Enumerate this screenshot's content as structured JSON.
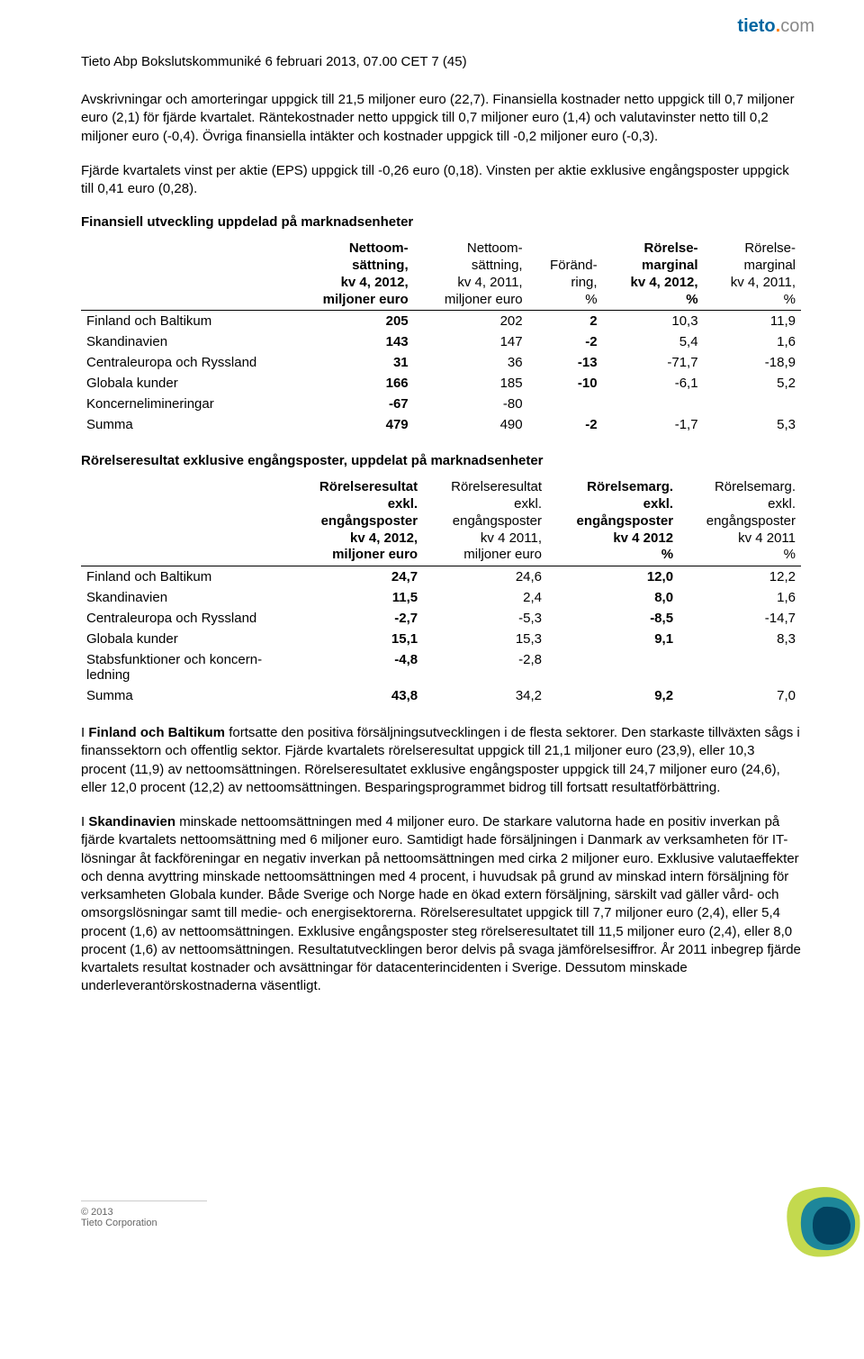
{
  "brand": {
    "name": "tieto",
    "dot": ".",
    "suffix": "com"
  },
  "header_line": "Tieto Abp Bokslutskommuniké 6 februari 2013, 07.00 CET  7 (45)",
  "para1": "Avskrivningar och amorteringar uppgick till 21,5 miljoner euro (22,7). Finansiella kostnader netto uppgick till 0,7 miljoner euro (2,1) för fjärde kvartalet. Räntekostnader netto uppgick till 0,7 miljoner euro (1,4) och valutavinster netto till 0,2 miljoner euro (-0,4). Övriga finansiella intäkter och kostnader uppgick till -0,2 miljoner euro (-0,3).",
  "para2": "Fjärde kvartalets vinst per aktie (EPS) uppgick till -0,26 euro (0,18). Vinsten per aktie exklusive engångsposter uppgick till 0,41 euro (0,28).",
  "section1_heading": "Finansiell utveckling uppdelad på marknadsenheter",
  "table1": {
    "type": "table",
    "columns": [
      {
        "lines": [
          ""
        ],
        "bold_lines": [
          ""
        ]
      },
      {
        "bold_lines": [
          "Nettoom-",
          "sättning,",
          "kv 4, 2012,",
          "miljoner euro"
        ],
        "lines": []
      },
      {
        "bold_lines": [],
        "lines": [
          "Nettoom-",
          "sättning,",
          "kv 4, 2011,",
          "miljoner euro"
        ]
      },
      {
        "bold_lines": [],
        "lines": [
          "Föränd-",
          "ring,",
          "%"
        ]
      },
      {
        "bold_lines": [
          "Rörelse-",
          "marginal",
          "kv 4, 2012,",
          "%"
        ],
        "lines": []
      },
      {
        "bold_lines": [],
        "lines": [
          "Rörelse-",
          "marginal",
          "kv 4, 2011,",
          "%"
        ]
      }
    ],
    "rows": [
      {
        "label": "Finland och Baltikum",
        "cells": [
          "205",
          "202",
          "2",
          "10,3",
          "11,9"
        ]
      },
      {
        "label": "Skandinavien",
        "cells": [
          "143",
          "147",
          "-2",
          "5,4",
          "1,6"
        ]
      },
      {
        "label": "Centraleuropa och Ryssland",
        "cells": [
          "31",
          "36",
          "-13",
          "-71,7",
          "-18,9"
        ]
      },
      {
        "label": "Globala kunder",
        "cells": [
          "166",
          "185",
          "-10",
          "-6,1",
          "5,2"
        ]
      },
      {
        "label": "Koncernelimineringar",
        "cells": [
          "-67",
          "-80",
          "",
          "",
          ""
        ]
      },
      {
        "label": "Summa",
        "cells": [
          "479",
          "490",
          "-2",
          "-1,7",
          "5,3"
        ]
      }
    ],
    "bold_cols": [
      1,
      3
    ]
  },
  "section2_heading": "Rörelseresultat exklusive engångsposter, uppdelat på marknadsenheter",
  "table2": {
    "type": "table",
    "columns": [
      {
        "lines": [
          ""
        ],
        "bold_lines": [
          ""
        ]
      },
      {
        "bold_lines": [
          "Rörelseresultat",
          "exkl.",
          "engångsposter",
          "kv 4, 2012,",
          "miljoner euro"
        ],
        "lines": []
      },
      {
        "bold_lines": [],
        "lines": [
          "Rörelseresultat",
          "exkl.",
          "engångsposter",
          "kv 4 2011,",
          "miljoner euro"
        ]
      },
      {
        "bold_lines": [
          "Rörelsemarg.",
          "exkl.",
          "engångsposter",
          "kv 4 2012",
          "%"
        ],
        "lines": []
      },
      {
        "bold_lines": [],
        "lines": [
          "Rörelsemarg.",
          "exkl.",
          "engångsposter",
          "kv 4 2011",
          "%"
        ]
      }
    ],
    "rows": [
      {
        "label": "Finland och Baltikum",
        "cells": [
          "24,7",
          "24,6",
          "12,0",
          "12,2"
        ]
      },
      {
        "label": "Skandinavien",
        "cells": [
          "11,5",
          "2,4",
          "8,0",
          "1,6"
        ]
      },
      {
        "label": "Centraleuropa och Ryssland",
        "cells": [
          "-2,7",
          "-5,3",
          "-8,5",
          "-14,7"
        ]
      },
      {
        "label": "Globala kunder",
        "cells": [
          "15,1",
          "15,3",
          "9,1",
          "8,3"
        ]
      },
      {
        "label": "Stabsfunktioner och koncern-\nledning",
        "cells": [
          "-4,8",
          "-2,8",
          "",
          ""
        ]
      },
      {
        "label": "Summa",
        "cells": [
          "43,8",
          "34,2",
          "9,2",
          "7,0"
        ]
      }
    ],
    "bold_cols": [
      1,
      3
    ]
  },
  "para3_lead": "I ",
  "para3_bold": "Finland och Baltikum",
  "para3_rest": " fortsatte den positiva försäljningsutvecklingen i de flesta sektorer. Den starkaste tillväxten sågs i finanssektorn och offentlig sektor. Fjärde kvartalets rörelseresultat uppgick till 21,1 miljoner euro (23,9), eller 10,3 procent (11,9) av nettoomsättningen. Rörelseresultatet exklusive engångsposter uppgick till 24,7 miljoner euro (24,6), eller 12,0 procent (12,2) av nettoomsättningen. Besparingsprogrammet bidrog till fortsatt resultatförbättring.",
  "para4_lead": "I ",
  "para4_bold": "Skandinavien",
  "para4_rest": " minskade nettoomsättningen med 4 miljoner euro. De starkare valutorna hade en positiv inverkan på fjärde kvartalets nettoomsättning med 6 miljoner euro. Samtidigt hade försäljningen i Danmark av verksamheten för IT-lösningar åt fackföreningar en negativ inverkan på nettoomsättningen med cirka 2 miljoner euro. Exklusive valutaeffekter och denna avyttring minskade nettoomsättningen med 4 procent, i huvudsak på grund av minskad intern försäljning för verksamheten Globala kunder. Både Sverige och Norge hade en ökad extern försäljning, särskilt vad gäller vård- och omsorgslösningar samt till medie- och energisektorerna. Rörelseresultatet uppgick till 7,7 miljoner euro (2,4), eller 5,4 procent (1,6) av nettoomsättningen. Exklusive engångsposter steg rörelseresultatet till 11,5 miljoner euro (2,4), eller 8,0 procent (1,6) av nettoomsättningen. Resultatutvecklingen beror delvis på svaga jämförelsesiffror. År 2011 inbegrep fjärde kvartalets resultat kostnader och avsättningar för datacenterincidenten i Sverige. Dessutom minskade underleverantörskostnaderna väsentligt.",
  "footer_year": "© 2013",
  "footer_company": "Tieto Corporation",
  "colors": {
    "brand_blue": "#0066a1",
    "brand_orange": "#ff7f00",
    "logo_dark": "#003d5c",
    "logo_mid": "#0077a8",
    "text_gray": "#888888"
  }
}
